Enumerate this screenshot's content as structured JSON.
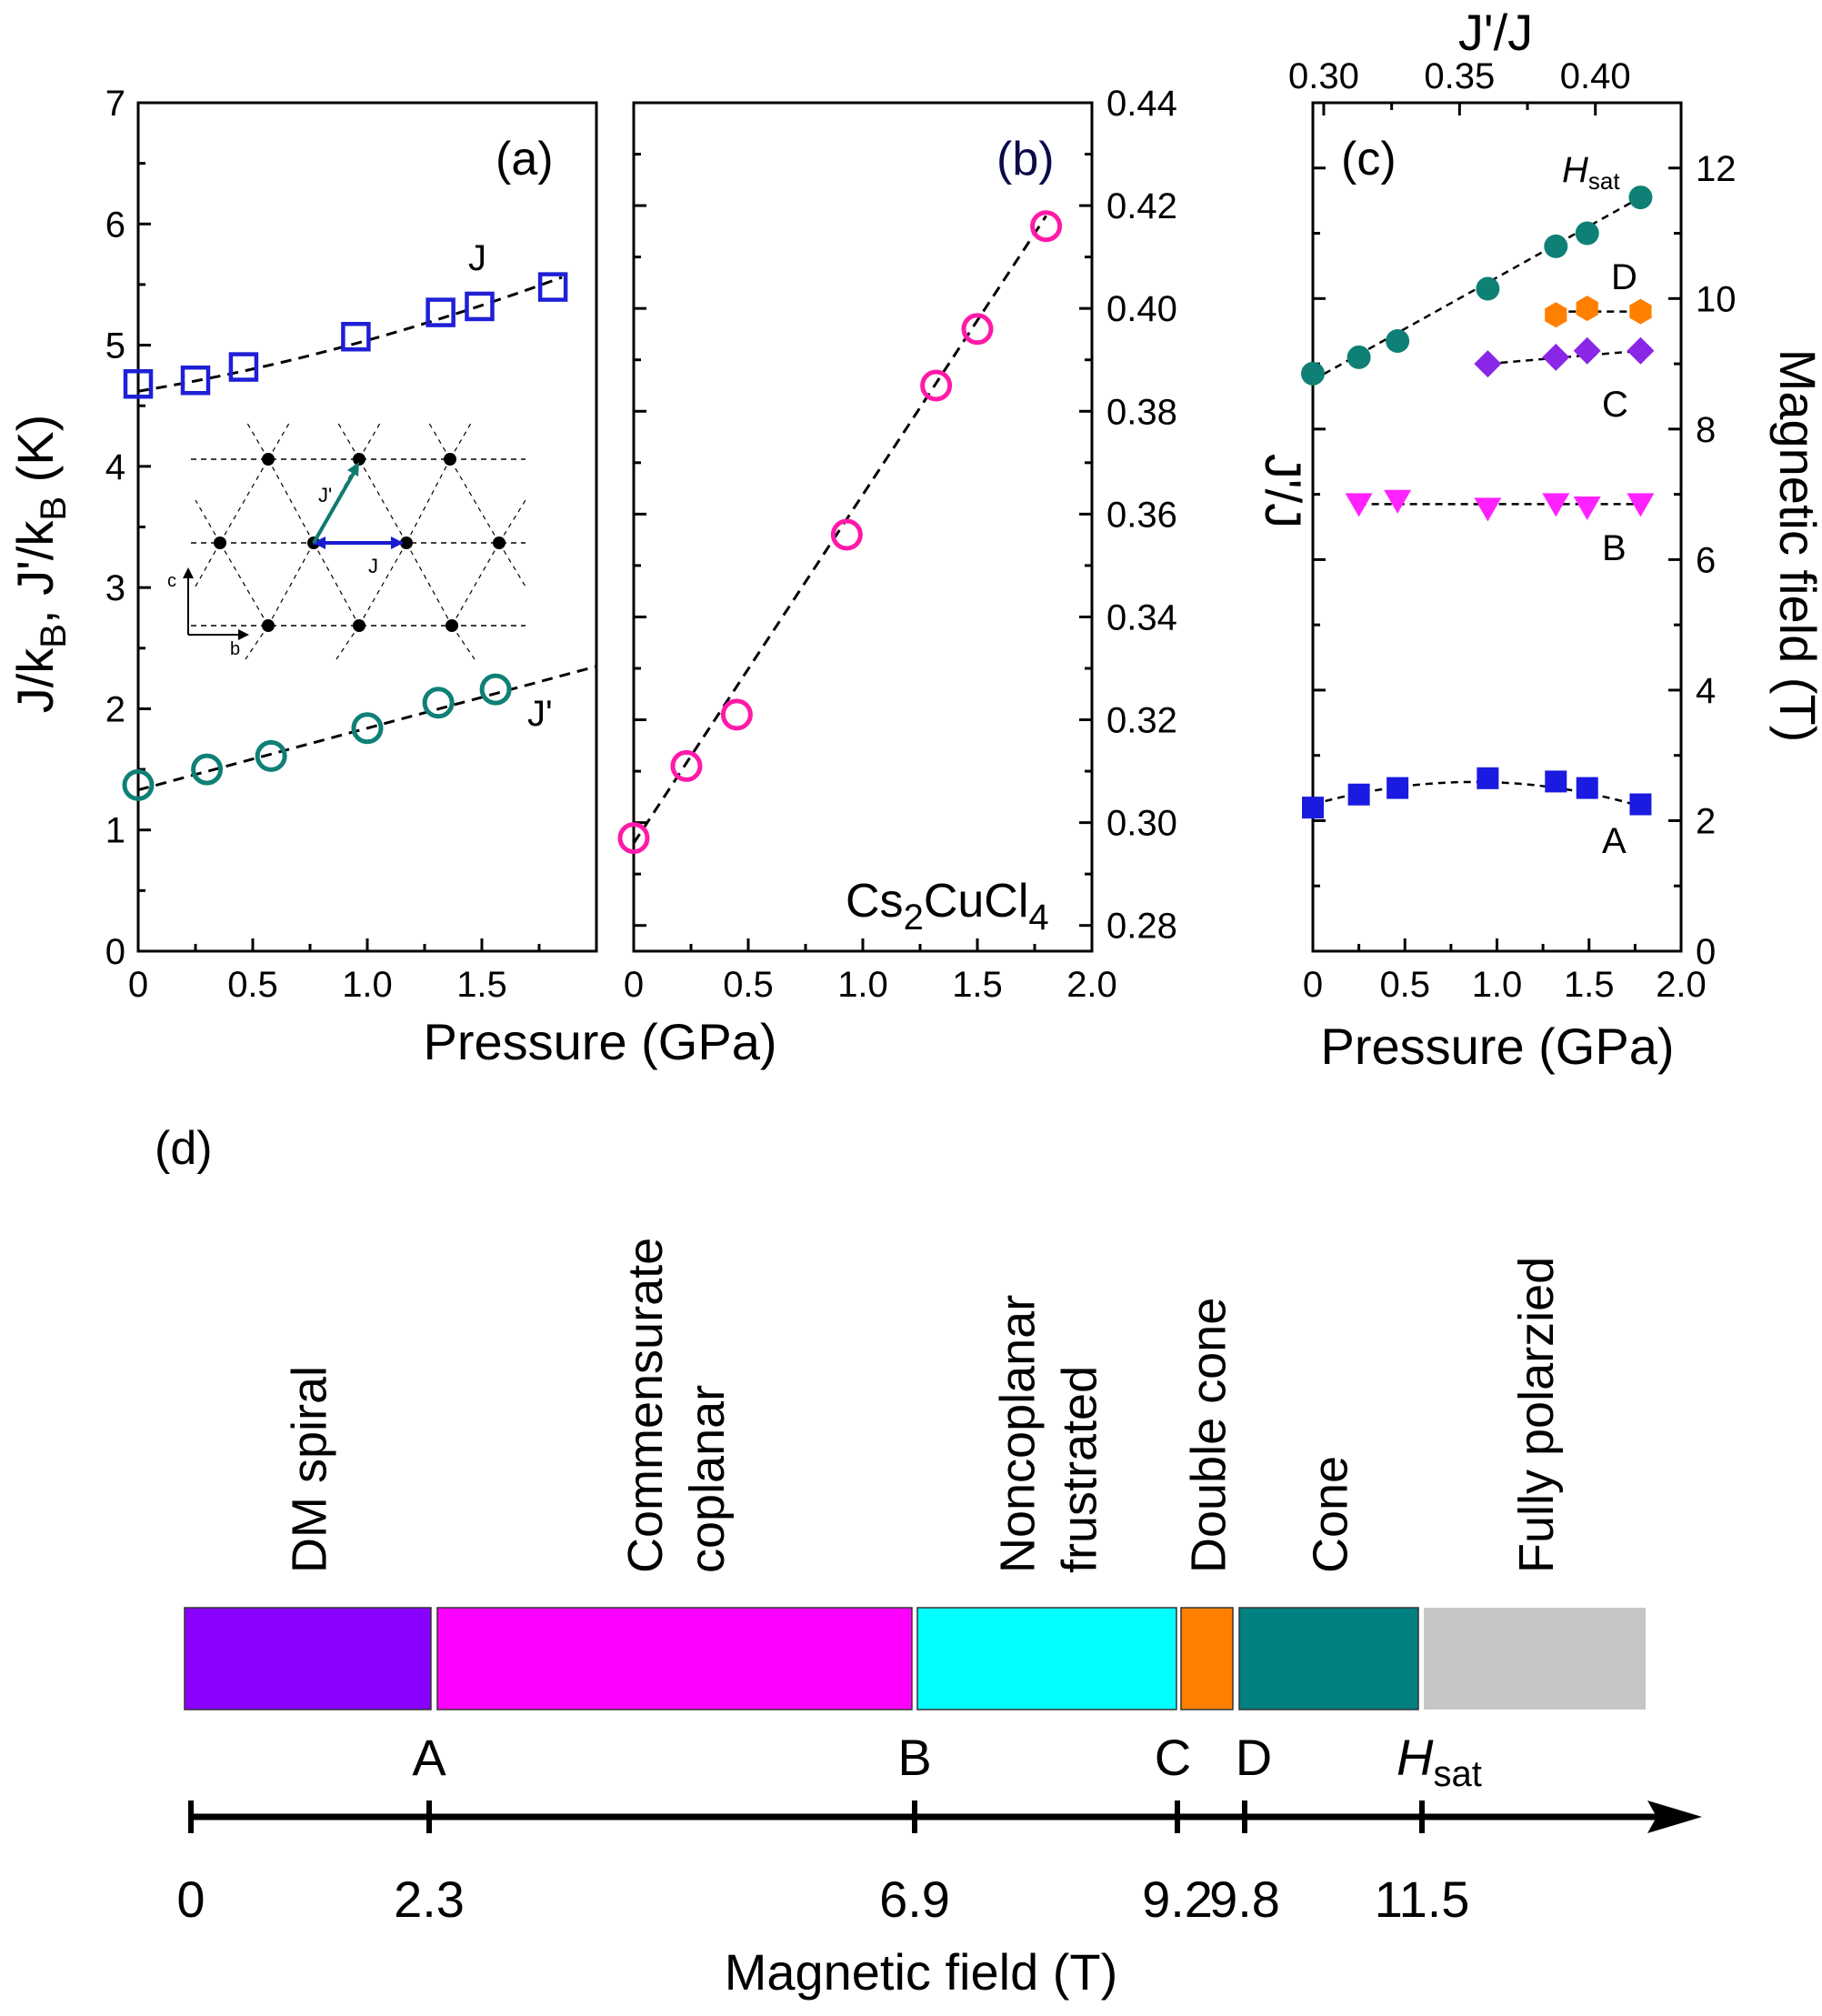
{
  "colors": {
    "blue": "#1f1fd6",
    "teal": "#0f8076",
    "magenta": "#ff1aa8",
    "lightMagenta": "#ff22ff",
    "orange": "#ff8000",
    "violet": "#8a26e6",
    "squareBlue": "#1a1ae0",
    "cyan": "#00ffff",
    "gray": "#c6c6c6",
    "purple": "#8a00ff",
    "phaseMagenta": "#ff00ff",
    "phaseOrange": "#ff8000",
    "phaseTeal": "#008080"
  },
  "chart_data": [
    {
      "type": "scatter",
      "panel": "(a)",
      "xlabel": "Pressure (GPa)",
      "ylabel": "J/kB,  J'/kB (K)",
      "ylim": [
        0,
        7
      ],
      "xlim": [
        0,
        2.0
      ],
      "xticks": [
        "0",
        "0.5",
        "1.0",
        "1.5"
      ],
      "yticks": [
        "0",
        "1",
        "2",
        "3",
        "4",
        "5",
        "6",
        "7"
      ],
      "series": [
        {
          "name": "J",
          "marker": "open-square",
          "x": [
            0,
            0.25,
            0.46,
            0.95,
            1.32,
            1.49,
            1.81
          ],
          "y": [
            4.68,
            4.71,
            4.82,
            5.07,
            5.27,
            5.32,
            5.48
          ]
        },
        {
          "name": "J'",
          "marker": "open-circle",
          "x": [
            0,
            0.3,
            0.58,
            1.0,
            1.31,
            1.56
          ],
          "y": [
            1.37,
            1.5,
            1.61,
            1.84,
            2.05,
            2.16
          ]
        }
      ],
      "fits": {
        "J": {
          "x0": 0,
          "y0": 4.62,
          "x1": 1.85,
          "y1": 5.56
        },
        "Jp": {
          "x0": 0,
          "y0": 1.33,
          "x1": 2.0,
          "y1": 2.35
        }
      },
      "inset": {
        "c_label": "c",
        "b_label": "b",
        "J_label": "J",
        "Jp_label": "J'"
      }
    },
    {
      "type": "scatter",
      "panel": "(b)",
      "xlabel": "Pressure (GPa)",
      "ylabel": "J'/J",
      "ylim": [
        0.275,
        0.44
      ],
      "xlim": [
        0,
        2.0
      ],
      "xticks": [
        "0",
        "0.5",
        "1.0",
        "1.5",
        "2.0"
      ],
      "yticks": [
        "0.28",
        "0.30",
        "0.32",
        "0.34",
        "0.36",
        "0.38",
        "0.40",
        "0.42",
        "0.44"
      ],
      "compound": "Cs2CuCl4",
      "series": [
        {
          "name": "J'/J",
          "marker": "open-circle",
          "x": [
            0,
            0.23,
            0.45,
            0.93,
            1.32,
            1.5,
            1.8
          ],
          "y": [
            0.297,
            0.311,
            0.321,
            0.356,
            0.385,
            0.396,
            0.416
          ]
        }
      ],
      "fit": {
        "x0": 0,
        "y0": 0.296,
        "x1": 1.8,
        "y1": 0.418
      }
    },
    {
      "type": "scatter",
      "panel": "(c)",
      "xlabel": "Pressure (GPa)",
      "ylabel": "Magnetic field (T)",
      "top_xlabel": "J'/J",
      "top_xticks": [
        "0.30",
        "0.35",
        "0.40"
      ],
      "ylim": [
        0,
        13
      ],
      "xlim": [
        0,
        2.0
      ],
      "xticks": [
        "0",
        "0.5",
        "1.0",
        "1.5",
        "2.0"
      ],
      "yticks": [
        "0",
        "2",
        "4",
        "6",
        "8",
        "10",
        "12"
      ],
      "series": [
        {
          "name": "A",
          "marker": "filled-square",
          "x": [
            0,
            0.25,
            0.46,
            0.95,
            1.32,
            1.49,
            1.78
          ],
          "y": [
            2.2,
            2.4,
            2.5,
            2.65,
            2.6,
            2.5,
            2.25
          ]
        },
        {
          "name": "B",
          "marker": "filled-down-triangle",
          "x": [
            0.25,
            0.46,
            0.95,
            1.32,
            1.49,
            1.78
          ],
          "y": [
            6.85,
            6.9,
            6.78,
            6.85,
            6.8,
            6.85
          ]
        },
        {
          "name": "C",
          "marker": "filled-diamond",
          "x": [
            0.95,
            1.32,
            1.49,
            1.78
          ],
          "y": [
            9.0,
            9.1,
            9.2,
            9.2
          ]
        },
        {
          "name": "D",
          "marker": "filled-hexagon",
          "x": [
            1.32,
            1.49,
            1.78
          ],
          "y": [
            9.75,
            9.85,
            9.8
          ]
        },
        {
          "name": "Hsat",
          "marker": "filled-circle",
          "x": [
            0,
            0.25,
            0.46,
            0.95,
            1.32,
            1.49,
            1.78
          ],
          "y": [
            8.85,
            9.1,
            9.35,
            10.15,
            10.8,
            11.0,
            11.55
          ]
        }
      ],
      "labels": {
        "A": "A",
        "B": "B",
        "C": "C",
        "D": "D",
        "Hsat": "H",
        "Hsat_sub": "sat"
      }
    },
    {
      "type": "bar",
      "panel": "(d)",
      "xlabel": "Magnetic field (T)",
      "boundaries": [
        0,
        2.3,
        6.9,
        9.2,
        9.8,
        11.5
      ],
      "boundary_tick_labels": [
        "0",
        "2.3",
        "6.9",
        "9.2",
        "9.8",
        "11.5"
      ],
      "boundary_letters": [
        "A",
        "B",
        "C",
        "D",
        "H"
      ],
      "hsat_sub": "sat",
      "phases": [
        {
          "name": "DM spiral",
          "lines": [
            "DM spiral"
          ],
          "from": 0,
          "to": 2.3
        },
        {
          "name": "Commensurate coplanar",
          "lines": [
            "Commensurate",
            "coplanar"
          ],
          "from": 2.3,
          "to": 6.9
        },
        {
          "name": "Noncoplanar frustrated",
          "lines": [
            "Noncoplanar",
            "frustrated"
          ],
          "from": 6.9,
          "to": 9.2
        },
        {
          "name": "Double cone",
          "lines": [
            "Double cone"
          ],
          "from": 9.2,
          "to": 9.8
        },
        {
          "name": "Cone",
          "lines": [
            "Cone"
          ],
          "from": 9.8,
          "to": 11.5
        },
        {
          "name": "Fully polarzied",
          "lines": [
            "Fully polarzied"
          ],
          "from": 11.5,
          "to": null
        }
      ]
    }
  ],
  "text": {
    "panel_a": "(a)",
    "panel_b": "(b)",
    "panel_c": "(c)",
    "panel_d": "(d)",
    "label_J": "J",
    "label_Jp": "J'",
    "pressure_a": "Pressure (GPa)",
    "pressure_c": "Pressure (GPa)",
    "ylabel_a_main": "J/k",
    "ylabel_a_sub1": "B",
    "ylabel_a_mid": ",  J'/k",
    "ylabel_a_sub2": "B",
    "ylabel_a_end": " (K)",
    "ylabel_b": "J'/J",
    "ylabel_c": "Magnetic field (T)",
    "top_xlabel_c": "J'/J",
    "compound_a": "Cs",
    "compound_b": "2",
    "compound_c": "CuCl",
    "compound_d": "4",
    "field_label": "Magnetic field (T)"
  }
}
